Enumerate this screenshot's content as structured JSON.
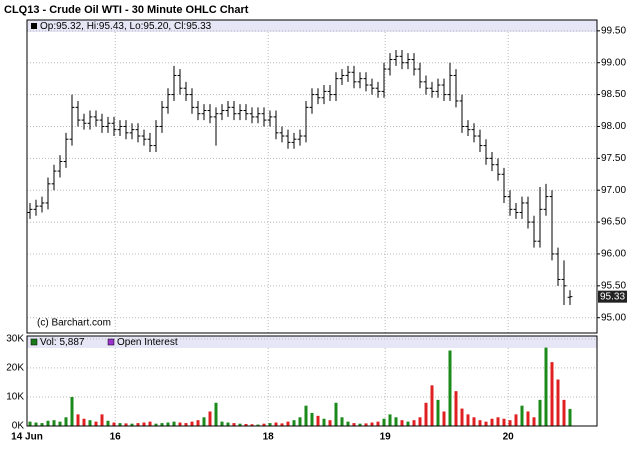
{
  "chart_data": {
    "type": "ohlc",
    "title": "CLQ13 - Crude Oil WTI - 30 Minute OHLC Chart",
    "legend_text": "Op:95.32, Hi:95.43, Lo:95.20, Cl:95.33",
    "watermark": "(c) Barchart.com",
    "last_label": "95.33",
    "bar_color": "#000000",
    "grid": true,
    "ylim": [
      94.76,
      99.67
    ],
    "yticks": [
      {
        "value": 95,
        "label": "95.00"
      },
      {
        "value": 95.5,
        "label": "95.50"
      },
      {
        "value": 96,
        "label": "96.00"
      },
      {
        "value": 96.5,
        "label": "96.50"
      },
      {
        "value": 97,
        "label": "97.00"
      },
      {
        "value": 97.5,
        "label": "97.50"
      },
      {
        "value": 98,
        "label": "98.00"
      },
      {
        "value": 98.5,
        "label": "98.50"
      },
      {
        "value": 99,
        "label": "99.00"
      },
      {
        "value": 99.5,
        "label": "99.50"
      }
    ],
    "xlim": [
      0,
      95
    ],
    "xticks": [
      {
        "value": 0,
        "label": "14 Jun"
      },
      {
        "value": 14.7,
        "label": "16"
      },
      {
        "value": 40.2,
        "label": "18"
      },
      {
        "value": 59.7,
        "label": "19"
      },
      {
        "value": 80.2,
        "label": "20"
      }
    ],
    "open": [
      96.65,
      96.7,
      96.75,
      96.8,
      97.1,
      97.3,
      97.45,
      97.8,
      98.3,
      98.1,
      98.05,
      98.15,
      98.1,
      98,
      98.05,
      97.95,
      98,
      97.9,
      97.95,
      97.85,
      97.8,
      97.7,
      98,
      98.3,
      98.5,
      98.8,
      98.6,
      98.5,
      98.3,
      98.2,
      98.25,
      98.15,
      98.2,
      98.25,
      98.3,
      98.2,
      98.25,
      98.2,
      98.15,
      98.2,
      98.1,
      98.15,
      97.9,
      97.85,
      97.75,
      97.8,
      97.85,
      98.3,
      98.5,
      98.45,
      98.55,
      98.5,
      98.75,
      98.8,
      98.85,
      98.7,
      98.75,
      98.65,
      98.6,
      98.55,
      98.9,
      99.05,
      99.1,
      99,
      99.05,
      98.9,
      98.7,
      98.6,
      98.55,
      98.65,
      98.5,
      98.8,
      98.4,
      98,
      97.95,
      97.85,
      97.7,
      97.5,
      97.4,
      97.25,
      96.9,
      96.7,
      96.65,
      96.8,
      96.5,
      96.2,
      96.7,
      96.9,
      96,
      95.6,
      95.32
    ],
    "high": [
      96.8,
      96.85,
      96.9,
      97.2,
      97.4,
      97.55,
      97.9,
      98.5,
      98.4,
      98.2,
      98.25,
      98.25,
      98.2,
      98.15,
      98.15,
      98.1,
      98.1,
      98.05,
      98.05,
      97.95,
      97.9,
      98.1,
      98.4,
      98.6,
      98.95,
      98.9,
      98.7,
      98.6,
      98.4,
      98.35,
      98.35,
      98.3,
      98.35,
      98.4,
      98.4,
      98.35,
      98.35,
      98.3,
      98.3,
      98.3,
      98.25,
      98.25,
      98,
      97.95,
      97.9,
      97.95,
      98.4,
      98.6,
      98.6,
      98.65,
      98.65,
      98.85,
      98.9,
      98.95,
      98.95,
      98.85,
      98.85,
      98.75,
      98.7,
      99,
      99.15,
      99.2,
      99.2,
      99.15,
      99.15,
      99,
      98.8,
      98.7,
      98.75,
      98.75,
      99,
      98.9,
      98.5,
      98.1,
      98.05,
      97.95,
      97.8,
      97.6,
      97.5,
      97.35,
      97,
      96.8,
      96.9,
      96.9,
      96.6,
      97.05,
      97.1,
      97,
      96.1,
      95.9,
      95.43
    ],
    "low": [
      96.55,
      96.6,
      96.65,
      96.7,
      97,
      97.2,
      97.35,
      97.7,
      98,
      97.95,
      97.95,
      98,
      97.9,
      97.9,
      97.85,
      97.85,
      97.8,
      97.8,
      97.75,
      97.7,
      97.6,
      97.6,
      97.9,
      98.2,
      98.4,
      98.5,
      98.4,
      98.2,
      98.1,
      98.1,
      98.05,
      97.7,
      98.1,
      98.15,
      98.1,
      98.1,
      98.1,
      98.05,
      98.05,
      98,
      98,
      97.8,
      97.75,
      97.65,
      97.65,
      97.7,
      97.75,
      98.2,
      98.35,
      98.35,
      98.4,
      98.4,
      98.65,
      98.7,
      98.6,
      98.6,
      98.55,
      98.5,
      98.45,
      98.45,
      98.8,
      98.95,
      98.9,
      98.9,
      98.8,
      98.6,
      98.5,
      98.45,
      98.45,
      98.4,
      98.4,
      98.3,
      97.9,
      97.85,
      97.75,
      97.6,
      97.4,
      97.3,
      97.15,
      96.8,
      96.6,
      96.55,
      96.55,
      96.4,
      96.1,
      96.1,
      96.6,
      95.9,
      95.5,
      95.2,
      95.2
    ],
    "close": [
      96.7,
      96.75,
      96.8,
      97.1,
      97.3,
      97.45,
      97.8,
      98.3,
      98.1,
      98.05,
      98.15,
      98.1,
      98,
      98.05,
      97.95,
      98,
      97.9,
      97.95,
      97.85,
      97.8,
      97.7,
      98,
      98.3,
      98.5,
      98.8,
      98.6,
      98.5,
      98.3,
      98.2,
      98.25,
      98.15,
      98.2,
      98.25,
      98.3,
      98.2,
      98.25,
      98.2,
      98.15,
      98.2,
      98.1,
      98.15,
      97.9,
      97.85,
      97.75,
      97.8,
      97.85,
      98.3,
      98.5,
      98.45,
      98.55,
      98.5,
      98.75,
      98.8,
      98.85,
      98.7,
      98.75,
      98.65,
      98.6,
      98.55,
      98.9,
      99.05,
      99.1,
      99,
      99.05,
      98.9,
      98.7,
      98.6,
      98.55,
      98.65,
      98.5,
      98.8,
      98.4,
      98,
      97.95,
      97.85,
      97.7,
      97.5,
      97.4,
      97.25,
      96.9,
      96.7,
      96.65,
      96.8,
      96.5,
      96.2,
      96.7,
      96.9,
      96,
      95.6,
      95.5,
      95.33
    ],
    "volume": {
      "legend": "Vol: 5,887",
      "legend_color": "#1a7a1a",
      "oi_legend": "Open Interest",
      "oi_color": "#9933cc",
      "up_color": "#1a8a1a",
      "down_color": "#e02020",
      "ylim": [
        0,
        31000
      ],
      "yticks": [
        {
          "value": 0,
          "label": "0K"
        },
        {
          "value": 10000,
          "label": "10K"
        },
        {
          "value": 20000,
          "label": "20K"
        },
        {
          "value": 30000,
          "label": "30K"
        }
      ],
      "values": [
        1500,
        1200,
        1000,
        1800,
        2000,
        1500,
        3000,
        10000,
        4000,
        2500,
        2000,
        1500,
        4000,
        1800,
        1200,
        1000,
        900,
        800,
        1000,
        1200,
        1500,
        800,
        1000,
        1200,
        1500,
        1200,
        1000,
        1500,
        2000,
        3000,
        5000,
        8000,
        1500,
        1200,
        1000,
        800,
        700,
        600,
        500,
        800,
        1000,
        1200,
        900,
        1500,
        2000,
        3000,
        7000,
        4500,
        3500,
        2500,
        2000,
        8000,
        3000,
        1500,
        1000,
        800,
        900,
        1200,
        1500,
        2500,
        4000,
        3000,
        2000,
        1500,
        2000,
        3000,
        8000,
        14000,
        9000,
        5000,
        26000,
        12000,
        6000,
        4000,
        3000,
        2000,
        1500,
        2500,
        3000,
        2500,
        2000,
        4000,
        7000,
        5000,
        3000,
        9000,
        27000,
        22000,
        16000,
        9000,
        5887
      ]
    }
  }
}
